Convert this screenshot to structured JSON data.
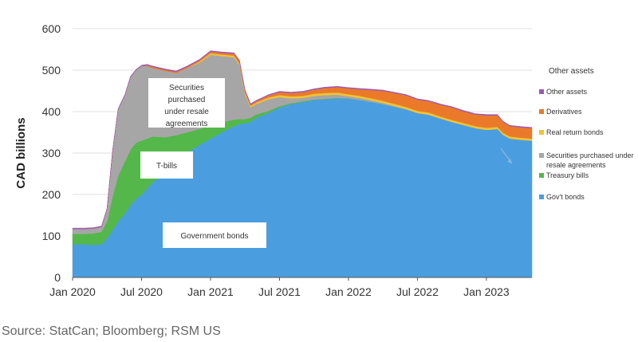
{
  "chart_data": {
    "type": "area",
    "stacked": true,
    "title": "",
    "xlabel": "",
    "ylabel": "CAD billions",
    "ylim": [
      0,
      600
    ],
    "yticks": [
      0,
      100,
      200,
      300,
      400,
      500,
      600
    ],
    "xticks": [
      {
        "label": "Jan 2020",
        "x": 2020.0
      },
      {
        "label": "Jul 2020",
        "x": 2020.5
      },
      {
        "label": "Jan 2021",
        "x": 2021.0
      },
      {
        "label": "Jul 2021",
        "x": 2021.5
      },
      {
        "label": "Jan 2022",
        "x": 2022.0
      },
      {
        "label": "Jul 2022",
        "x": 2022.5
      },
      {
        "label": "Jan 2023",
        "x": 2023.0
      }
    ],
    "xlim": [
      2020.0,
      2023.33
    ],
    "grid": "horizontal",
    "x": [
      2020.0,
      2020.08,
      2020.15,
      2020.21,
      2020.25,
      2020.29,
      2020.33,
      2020.38,
      2020.42,
      2020.46,
      2020.5,
      2020.54,
      2020.58,
      2020.67,
      2020.75,
      2020.83,
      2020.92,
      2021.0,
      2021.08,
      2021.17,
      2021.21,
      2021.25,
      2021.29,
      2021.33,
      2021.42,
      2021.5,
      2021.58,
      2021.67,
      2021.75,
      2021.83,
      2021.92,
      2022.0,
      2022.08,
      2022.17,
      2022.25,
      2022.33,
      2022.42,
      2022.5,
      2022.58,
      2022.67,
      2022.75,
      2022.83,
      2022.92,
      2023.0,
      2023.08,
      2023.12,
      2023.17,
      2023.25,
      2023.33
    ],
    "series": [
      {
        "name": "Gov't bonds",
        "color": "#4a9ee0",
        "values": [
          80,
          80,
          78,
          80,
          95,
          115,
          135,
          155,
          175,
          190,
          200,
          215,
          230,
          250,
          275,
          300,
          320,
          335,
          350,
          365,
          370,
          372,
          375,
          385,
          397,
          410,
          418,
          423,
          428,
          430,
          432,
          432,
          428,
          423,
          418,
          412,
          405,
          396,
          392,
          383,
          375,
          368,
          360,
          356,
          358,
          344,
          335,
          332,
          330
        ]
      },
      {
        "name": "Treasury bills",
        "color": "#53b849",
        "values": [
          25,
          25,
          28,
          30,
          40,
          80,
          110,
          125,
          133,
          135,
          130,
          120,
          110,
          88,
          68,
          50,
          38,
          32,
          24,
          16,
          12,
          10,
          10,
          8,
          5,
          3,
          2,
          2,
          1,
          1,
          1,
          0,
          0,
          0,
          0,
          0,
          0,
          0,
          0,
          0,
          0,
          0,
          0,
          0,
          0,
          0,
          0,
          0,
          0
        ]
      },
      {
        "name": "Securities purchased under resale agreements",
        "color": "#a6a6a6",
        "values": [
          12,
          12,
          12,
          12,
          30,
          110,
          160,
          160,
          175,
          175,
          180,
          175,
          165,
          160,
          150,
          155,
          160,
          170,
          160,
          150,
          130,
          60,
          25,
          25,
          28,
          22,
          12,
          8,
          9,
          9,
          8,
          5,
          5,
          4,
          3,
          2,
          1,
          1,
          1,
          0,
          0,
          0,
          0,
          0,
          0,
          0,
          0,
          0,
          0
        ]
      },
      {
        "name": "Real return bonds",
        "color": "#f2c330",
        "values": [
          0,
          0,
          0,
          0,
          0,
          0,
          0,
          0,
          0,
          0,
          0,
          0,
          0,
          0,
          0,
          0,
          3,
          4,
          4,
          4,
          4,
          4,
          4,
          4,
          4,
          5,
          5,
          5,
          5,
          5,
          5,
          5,
          5,
          5,
          5,
          5,
          5,
          5,
          5,
          5,
          5,
          5,
          5,
          5,
          5,
          5,
          5,
          5,
          5
        ]
      },
      {
        "name": "Derivatives",
        "color": "#ea7a2a",
        "values": [
          0,
          0,
          0,
          0,
          0,
          0,
          0,
          0,
          0,
          0,
          0,
          2,
          3,
          3,
          3,
          3,
          3,
          4,
          4,
          5,
          6,
          5,
          3,
          3,
          5,
          7,
          8,
          9,
          10,
          12,
          13,
          14,
          16,
          20,
          24,
          26,
          28,
          27,
          27,
          28,
          30,
          28,
          28,
          30,
          28,
          26,
          25,
          25,
          25
        ]
      },
      {
        "name": "Other assets",
        "color": "#9b59b6",
        "values": [
          2,
          2,
          2,
          2,
          2,
          2,
          2,
          2,
          2,
          2,
          2,
          2,
          2,
          2,
          2,
          2,
          2,
          2,
          2,
          2,
          2,
          2,
          2,
          2,
          2,
          2,
          2,
          2,
          2,
          2,
          2,
          2,
          2,
          2,
          2,
          2,
          2,
          2,
          2,
          2,
          2,
          2,
          2,
          2,
          2,
          2,
          2,
          2,
          2
        ]
      }
    ],
    "legend": {
      "title": "Other assets",
      "placement": "right",
      "entries": [
        {
          "lines": [
            "Other assets"
          ],
          "color": "#9b59b6"
        },
        {
          "lines": [
            "Derivatives"
          ],
          "color": "#ea7a2a"
        },
        {
          "lines": [
            "Real return bonds"
          ],
          "color": "#f2c330"
        },
        {
          "lines": [
            "Securities purchased under",
            "resale agreements"
          ],
          "color": "#a6a6a6"
        },
        {
          "lines": [
            "Treasury bills"
          ],
          "color": "#53b849"
        },
        {
          "lines": [
            "Gov't bonds"
          ],
          "color": "#4a9ee0"
        }
      ]
    },
    "annotations": [
      {
        "name": "annotation-securities",
        "lines": [
          "Securities",
          "purchased",
          "under resale",
          "agreements"
        ]
      },
      {
        "name": "annotation-tbills",
        "lines": [
          "T-bills"
        ]
      },
      {
        "name": "annotation-government-bonds",
        "lines": [
          "Government bonds"
        ]
      }
    ]
  },
  "source": "Source: StatCan; Bloomberg; RSM US"
}
